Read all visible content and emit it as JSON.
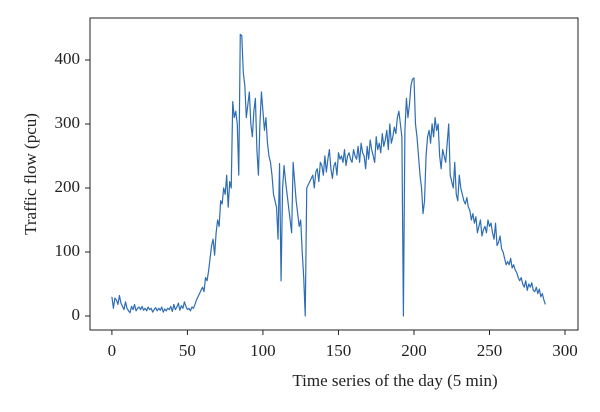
{
  "chart_data": {
    "type": "line",
    "x_label": "Time series of the day (5 min)",
    "y_label": "Traffic flow (pcu)",
    "x": [
      0,
      1,
      2,
      3,
      4,
      5,
      6,
      7,
      8,
      9,
      10,
      11,
      12,
      13,
      14,
      15,
      16,
      17,
      18,
      19,
      20,
      21,
      22,
      23,
      24,
      25,
      26,
      27,
      28,
      29,
      30,
      31,
      32,
      33,
      34,
      35,
      36,
      37,
      38,
      39,
      40,
      41,
      42,
      43,
      44,
      45,
      46,
      47,
      48,
      49,
      50,
      51,
      52,
      53,
      54,
      55,
      56,
      57,
      58,
      59,
      60,
      61,
      62,
      63,
      64,
      65,
      66,
      67,
      68,
      69,
      70,
      71,
      72,
      73,
      74,
      75,
      76,
      77,
      78,
      79,
      80,
      81,
      82,
      83,
      84,
      85,
      86,
      87,
      88,
      89,
      90,
      91,
      92,
      93,
      94,
      95,
      96,
      97,
      98,
      99,
      100,
      101,
      102,
      103,
      104,
      105,
      106,
      107,
      108,
      109,
      110,
      111,
      112,
      113,
      114,
      115,
      116,
      117,
      118,
      119,
      120,
      121,
      122,
      123,
      124,
      125,
      126,
      127,
      128,
      129,
      130,
      131,
      132,
      133,
      134,
      135,
      136,
      137,
      138,
      139,
      140,
      141,
      142,
      143,
      144,
      145,
      146,
      147,
      148,
      149,
      150,
      151,
      152,
      153,
      154,
      155,
      156,
      157,
      158,
      159,
      160,
      161,
      162,
      163,
      164,
      165,
      166,
      167,
      168,
      169,
      170,
      171,
      172,
      173,
      174,
      175,
      176,
      177,
      178,
      179,
      180,
      181,
      182,
      183,
      184,
      185,
      186,
      187,
      188,
      189,
      190,
      191,
      192,
      193,
      194,
      195,
      196,
      197,
      198,
      199,
      200,
      201,
      202,
      203,
      204,
      205,
      206,
      207,
      208,
      209,
      210,
      211,
      212,
      213,
      214,
      215,
      216,
      217,
      218,
      219,
      220,
      221,
      222,
      223,
      224,
      225,
      226,
      227,
      228,
      229,
      230,
      231,
      232,
      233,
      234,
      235,
      236,
      237,
      238,
      239,
      240,
      241,
      242,
      243,
      244,
      245,
      246,
      247,
      248,
      249,
      250,
      251,
      252,
      253,
      254,
      255,
      256,
      257,
      258,
      259,
      260,
      261,
      262,
      263,
      264,
      265,
      266,
      267,
      268,
      269,
      270,
      271,
      272,
      273,
      274,
      275,
      276,
      277,
      278,
      279,
      280,
      281,
      282,
      283,
      284,
      285,
      286,
      287
    ],
    "series": [
      {
        "color": "#2e6db4",
        "values": [
          30,
          12,
          28,
          25,
          18,
          32,
          20,
          15,
          10,
          22,
          12,
          8,
          5,
          15,
          10,
          18,
          8,
          12,
          14,
          10,
          15,
          9,
          12,
          8,
          14,
          10,
          12,
          6,
          10,
          13,
          8,
          12,
          9,
          14,
          6,
          11,
          8,
          12,
          10,
          15,
          7,
          18,
          10,
          14,
          20,
          9,
          16,
          12,
          22,
          15,
          10,
          12,
          8,
          14,
          12,
          18,
          25,
          30,
          35,
          40,
          45,
          38,
          60,
          55,
          70,
          90,
          110,
          120,
          95,
          130,
          150,
          140,
          180,
          175,
          200,
          190,
          220,
          170,
          210,
          200,
          335,
          310,
          320,
          300,
          220,
          440,
          438,
          380,
          360,
          310,
          330,
          350,
          300,
          280,
          320,
          340,
          260,
          220,
          300,
          350,
          320,
          290,
          310,
          270,
          250,
          240,
          220,
          190,
          180,
          170,
          120,
          238,
          55,
          200,
          235,
          210,
          190,
          170,
          150,
          130,
          240,
          210,
          180,
          160,
          140,
          150,
          100,
          60,
          0,
          200,
          205,
          210,
          215,
          220,
          200,
          225,
          230,
          210,
          240,
          235,
          220,
          250,
          225,
          245,
          260,
          230,
          215,
          235,
          240,
          220,
          255,
          245,
          250,
          240,
          260,
          235,
          250,
          255,
          245,
          240,
          260,
          250,
          245,
          265,
          240,
          270,
          255,
          250,
          230,
          265,
          245,
          275,
          260,
          250,
          240,
          280,
          260,
          270,
          255,
          285,
          265,
          275,
          290,
          260,
          300,
          270,
          280,
          295,
          285,
          310,
          320,
          300,
          280,
          0,
          290,
          340,
          310,
          330,
          360,
          370,
          372,
          300,
          280,
          250,
          220,
          200,
          160,
          180,
          250,
          280,
          290,
          270,
          300,
          280,
          310,
          290,
          300,
          250,
          230,
          260,
          250,
          240,
          270,
          300,
          220,
          210,
          200,
          240,
          190,
          180,
          220,
          200,
          190,
          180,
          175,
          185,
          170,
          165,
          150,
          160,
          145,
          155,
          130,
          140,
          150,
          125,
          135,
          140,
          130,
          150,
          140,
          145,
          130,
          120,
          145,
          110,
          115,
          125,
          105,
          100,
          90,
          80,
          85,
          80,
          90,
          75,
          80,
          72,
          68,
          60,
          55,
          60,
          50,
          45,
          55,
          40,
          50,
          45,
          52,
          40,
          38,
          45,
          35,
          42,
          30,
          35,
          25,
          18
        ]
      }
    ],
    "xlim": [
      -14.5,
      308.6
    ],
    "ylim": [
      -21.9,
      465.6
    ],
    "xticks": [
      0,
      50,
      100,
      150,
      200,
      250,
      300
    ],
    "yticks": [
      0,
      100,
      200,
      300,
      400
    ]
  }
}
